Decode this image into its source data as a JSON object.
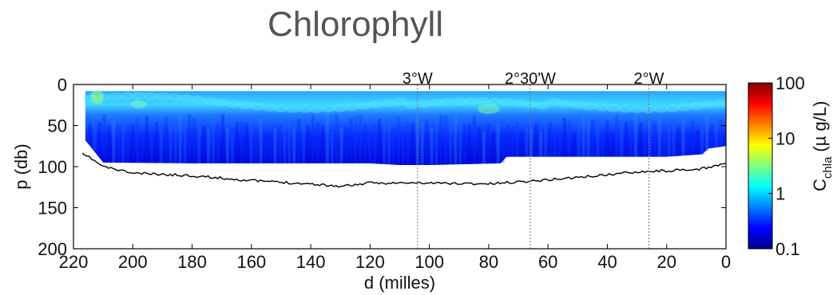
{
  "title": "Chlorophyll",
  "chart_data": {
    "type": "heatmap",
    "title": "Chlorophyll",
    "xlabel": "d (milles)",
    "ylabel": "p (db)",
    "xlim": [
      220,
      0
    ],
    "ylim": [
      200,
      0
    ],
    "x_ticks": [
      220,
      200,
      180,
      160,
      140,
      120,
      100,
      80,
      60,
      40,
      20,
      0
    ],
    "y_ticks": [
      0,
      50,
      100,
      150,
      200
    ],
    "colorbar": {
      "label_main": "C",
      "label_sub": "chla",
      "label_unit": "(µ g/L)",
      "scale": "log",
      "ticks": [
        100,
        10,
        1,
        0.1
      ],
      "tick_labels": [
        "100",
        "10",
        "1",
        "0.1"
      ],
      "colormap": "jet"
    },
    "longitude_markers": [
      {
        "label": "3°W",
        "d": 104
      },
      {
        "label": "2°30'W",
        "d": 66
      },
      {
        "label": "2°W",
        "d": 26
      }
    ],
    "data_bottom_depth": [
      {
        "d": 216,
        "p": 68
      },
      {
        "d": 210,
        "p": 95
      },
      {
        "d": 180,
        "p": 96
      },
      {
        "d": 140,
        "p": 96
      },
      {
        "d": 120,
        "p": 96
      },
      {
        "d": 110,
        "p": 98
      },
      {
        "d": 100,
        "p": 98
      },
      {
        "d": 76,
        "p": 96
      },
      {
        "d": 74,
        "p": 88
      },
      {
        "d": 20,
        "p": 88
      },
      {
        "d": 8,
        "p": 85
      },
      {
        "d": 6,
        "p": 78
      },
      {
        "d": 0,
        "p": 75
      }
    ],
    "seafloor": {
      "series_color": "#000000",
      "points": [
        {
          "d": 217,
          "p": 85
        },
        {
          "d": 214,
          "p": 90
        },
        {
          "d": 210,
          "p": 100
        },
        {
          "d": 200,
          "p": 108
        },
        {
          "d": 180,
          "p": 111
        },
        {
          "d": 160,
          "p": 117
        },
        {
          "d": 140,
          "p": 121
        },
        {
          "d": 130,
          "p": 124
        },
        {
          "d": 120,
          "p": 120
        },
        {
          "d": 100,
          "p": 120
        },
        {
          "d": 80,
          "p": 121
        },
        {
          "d": 60,
          "p": 116
        },
        {
          "d": 40,
          "p": 110
        },
        {
          "d": 30,
          "p": 106
        },
        {
          "d": 20,
          "p": 105
        },
        {
          "d": 10,
          "p": 104
        },
        {
          "d": 0,
          "p": 96
        }
      ]
    },
    "grid": false
  }
}
